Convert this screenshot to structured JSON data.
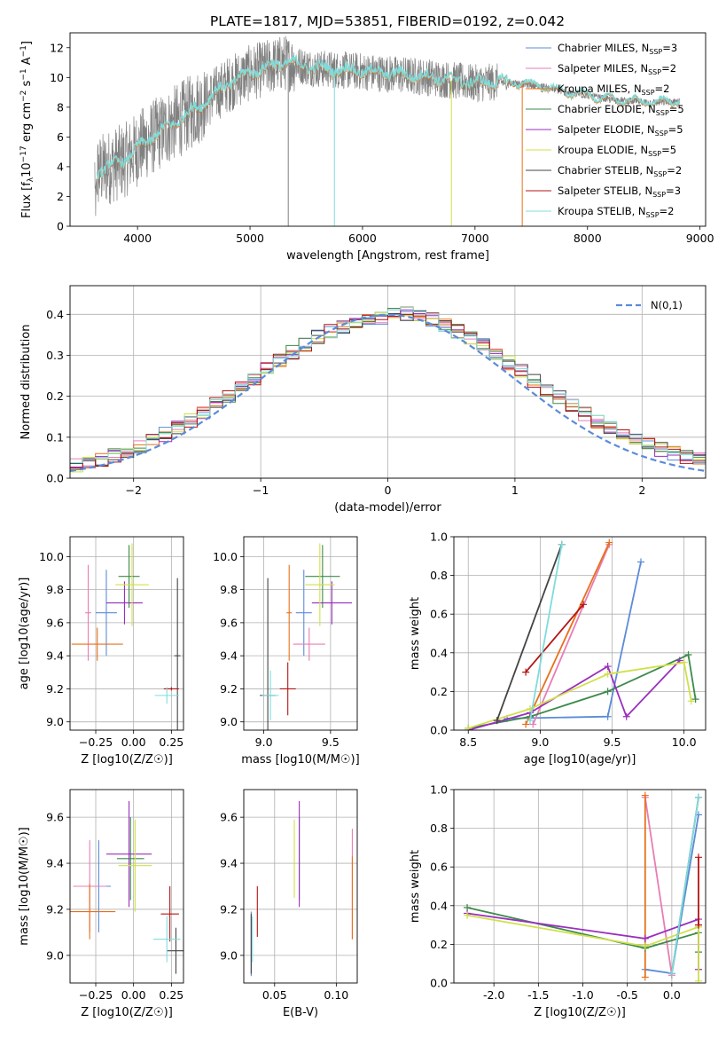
{
  "title": "PLATE=1817, MJD=53851, FIBERID=0192, z=0.042",
  "colors": [
    "#5b8bd9",
    "#e87db5",
    "#e8701a",
    "#3d8a4a",
    "#9a2fbe",
    "#d0e04a",
    "#444444",
    "#b51313",
    "#7fdcdc"
  ],
  "models": [
    "Chabrier MILES, N_SSP=3",
    "Salpeter MILES, N_SSP=2",
    "Kroupa MILES, N_SSP=2",
    "Chabrier ELODIE, N_SSP=5",
    "Salpeter ELODIE, N_SSP=5",
    "Kroupa ELODIE, N_SSP=5",
    "Chabrier STELIB, N_SSP=2",
    "Salpeter STELIB, N_SSP=3",
    "Kroupa STELIB, N_SSP=2"
  ],
  "panels": {
    "spectrum": {
      "xlabel": "wavelength [Angstrom, rest frame]",
      "ylabel": "Flux [f_λ 10^-17 erg cm^-2 s^-1 A^-1]"
    },
    "residuals": {
      "xlabel": "(data-model)/error",
      "ylabel": "Normed distribution",
      "legend": "N(0,1)"
    },
    "z_age": {
      "xlabel": "Z [log10(Z/Z☉)]",
      "ylabel": "age [log10(age/yr)]"
    },
    "mass_age": {
      "xlabel": "mass [log10(M/M☉)]"
    },
    "age_weight": {
      "xlabel": "age [log10(age/yr)]",
      "ylabel": "mass weight"
    },
    "z_mass": {
      "xlabel": "Z [log10(Z/Z☉)]",
      "ylabel": "mass [log10(M/M☉)]"
    },
    "ebv_mass": {
      "xlabel": "E(B-V)"
    },
    "z_weight": {
      "xlabel": "Z [log10(Z/Z☉)]",
      "ylabel": "mass weight"
    }
  },
  "chart_data": [
    {
      "type": "line",
      "name": "spectrum",
      "xlim": [
        3400,
        9050
      ],
      "ylim": [
        0,
        13
      ],
      "xticks": [
        4000,
        5000,
        6000,
        7000,
        8000,
        9000
      ],
      "yticks": [
        0,
        2,
        4,
        6,
        8,
        10,
        12
      ],
      "data_envelope": {
        "x": [
          3620,
          3700,
          3900,
          4000,
          4100,
          4300,
          4500,
          4800,
          5000,
          5300,
          5600,
          6000,
          6300,
          6600,
          6800,
          7000,
          7200,
          7400,
          7600,
          7800,
          8000,
          8200,
          8400,
          8600,
          8800
        ],
        "y": [
          3.5,
          3.8,
          4.5,
          5.2,
          5.8,
          6.8,
          7.8,
          9.5,
          10.3,
          11.0,
          10.6,
          10.4,
          10.2,
          10.0,
          9.8,
          9.6,
          9.7,
          9.6,
          9.4,
          9.0,
          8.8,
          8.5,
          8.4,
          8.3,
          8.4
        ]
      }
    },
    {
      "type": "line",
      "name": "residual histograms",
      "xlim": [
        -2.5,
        2.5
      ],
      "ylim": [
        0,
        0.47
      ],
      "xticks": [
        -2,
        -1,
        0,
        1,
        2
      ],
      "yticks": [
        0.0,
        0.1,
        0.2,
        0.3,
        0.4
      ],
      "normal_mean": 0,
      "normal_sigma": 1
    },
    {
      "type": "scatter",
      "name": "Z vs age",
      "xlim": [
        -0.42,
        0.33
      ],
      "ylim": [
        8.95,
        10.12
      ],
      "xticks": [
        -0.25,
        0.0,
        0.25
      ],
      "yticks": [
        9.0,
        9.2,
        9.4,
        9.6,
        9.8,
        10.0
      ],
      "points": [
        {
          "x": -0.18,
          "y": 9.66,
          "xerr": 0.07,
          "yerr": 0.26
        },
        {
          "x": -0.3,
          "y": 9.66,
          "xerr": 0.02,
          "yerr": 0.29
        },
        {
          "x": -0.24,
          "y": 9.47,
          "xerr": 0.17,
          "yerr": 0.1
        },
        {
          "x": -0.03,
          "y": 9.88,
          "xerr": 0.07,
          "yerr": 0.19
        },
        {
          "x": -0.06,
          "y": 9.72,
          "xerr": 0.12,
          "yerr": 0.13
        },
        {
          "x": -0.01,
          "y": 9.83,
          "xerr": 0.11,
          "yerr": 0.25
        },
        {
          "x": 0.29,
          "y": 9.4,
          "xerr": 0.02,
          "yerr": 0.47
        },
        {
          "x": 0.25,
          "y": 9.2,
          "xerr": 0.05,
          "yerr": 0.01
        },
        {
          "x": 0.22,
          "y": 9.16,
          "xerr": 0.08,
          "yerr": 0.05
        }
      ]
    },
    {
      "type": "scatter",
      "name": "mass vs age",
      "xlim": [
        8.85,
        9.7
      ],
      "ylim": [
        8.95,
        10.12
      ],
      "xticks": [
        9.0,
        9.5
      ],
      "yticks": [
        9.0,
        9.2,
        9.4,
        9.6,
        9.8,
        10.0
      ],
      "points": [
        {
          "x": 9.3,
          "y": 9.66,
          "xerr": 0.06,
          "yerr": 0.26
        },
        {
          "x": 9.34,
          "y": 9.47,
          "xerr": 0.12,
          "yerr": 0.1
        },
        {
          "x": 9.19,
          "y": 9.66,
          "xerr": 0.02,
          "yerr": 0.29
        },
        {
          "x": 9.44,
          "y": 9.88,
          "xerr": 0.13,
          "yerr": 0.19
        },
        {
          "x": 9.51,
          "y": 9.72,
          "xerr": 0.15,
          "yerr": 0.13
        },
        {
          "x": 9.42,
          "y": 9.83,
          "xerr": 0.11,
          "yerr": 0.25
        },
        {
          "x": 9.03,
          "y": 9.16,
          "xerr": 0.06,
          "yerr": 0.71
        },
        {
          "x": 9.18,
          "y": 9.2,
          "xerr": 0.06,
          "yerr": 0.16
        },
        {
          "x": 9.05,
          "y": 9.16,
          "xerr": 0.06,
          "yerr": 0.15
        }
      ]
    },
    {
      "type": "line",
      "name": "age vs mass weight",
      "xlim": [
        8.4,
        10.15
      ],
      "ylim": [
        0,
        1
      ],
      "xticks": [
        8.5,
        9.0,
        9.5,
        10.0
      ],
      "yticks": [
        0.0,
        0.2,
        0.4,
        0.6,
        0.8,
        1.0
      ],
      "series": [
        {
          "x": [
            8.77,
            9.47,
            9.7
          ],
          "y": [
            0.06,
            0.07,
            0.87
          ]
        },
        {
          "x": [
            8.95,
            9.48
          ],
          "y": [
            0.03,
            0.96
          ]
        },
        {
          "x": [
            8.9,
            9.48
          ],
          "y": [
            0.03,
            0.97
          ]
        },
        {
          "x": [
            8.5,
            8.93,
            9.47,
            10.03,
            10.08
          ],
          "y": [
            0.01,
            0.07,
            0.2,
            0.39,
            0.16
          ]
        },
        {
          "x": [
            8.5,
            8.93,
            9.47,
            9.6,
            9.97
          ],
          "y": [
            0.0,
            0.09,
            0.33,
            0.07,
            0.36
          ]
        },
        {
          "x": [
            8.5,
            8.93,
            9.47,
            10.0,
            10.05
          ],
          "y": [
            0.01,
            0.11,
            0.29,
            0.35,
            0.15
          ]
        },
        {
          "x": [
            8.7,
            9.15
          ],
          "y": [
            0.05,
            0.96
          ]
        },
        {
          "x": [
            8.9,
            9.3
          ],
          "y": [
            0.3,
            0.65
          ]
        },
        {
          "x": [
            8.93,
            9.15
          ],
          "y": [
            0.05,
            0.96
          ]
        }
      ]
    },
    {
      "type": "scatter",
      "name": "Z vs mass",
      "xlim": [
        -0.42,
        0.33
      ],
      "ylim": [
        8.88,
        9.72
      ],
      "xticks": [
        -0.25,
        0.0,
        0.25
      ],
      "yticks": [
        9.0,
        9.2,
        9.4,
        9.6
      ],
      "points": [
        {
          "x": -0.23,
          "y": 9.3,
          "xerr": 0.08,
          "yerr": 0.2
        },
        {
          "x": -0.29,
          "y": 9.3,
          "xerr": 0.11,
          "yerr": 0.2
        },
        {
          "x": -0.29,
          "y": 9.19,
          "xerr": 0.17,
          "yerr": 0.12
        },
        {
          "x": -0.02,
          "y": 9.42,
          "xerr": 0.09,
          "yerr": 0.18
        },
        {
          "x": -0.03,
          "y": 9.44,
          "xerr": 0.15,
          "yerr": 0.23
        },
        {
          "x": 0.01,
          "y": 9.39,
          "xerr": 0.11,
          "yerr": 0.2
        },
        {
          "x": 0.28,
          "y": 9.02,
          "xerr": 0.06,
          "yerr": 0.1
        },
        {
          "x": 0.24,
          "y": 9.18,
          "xerr": 0.06,
          "yerr": 0.12
        },
        {
          "x": 0.22,
          "y": 9.07,
          "xerr": 0.09,
          "yerr": 0.1
        }
      ]
    },
    {
      "type": "scatter",
      "name": "E(B-V) vs mass",
      "xlim": [
        0.025,
        0.117
      ],
      "ylim": [
        8.88,
        9.72
      ],
      "xticks": [
        0.05,
        0.1
      ],
      "yticks": [
        9.0,
        9.2,
        9.4,
        9.6
      ],
      "points": [
        {
          "x": 0.031,
          "y": 9.05,
          "yerr": 0.14
        },
        {
          "x": 0.113,
          "y": 9.31,
          "yerr": 0.24
        },
        {
          "x": 0.113,
          "y": 9.25,
          "yerr": 0.18
        },
        {
          "x": 0.07,
          "y": 9.42,
          "yerr": 0.18
        },
        {
          "x": 0.07,
          "y": 9.44,
          "yerr": 0.23
        },
        {
          "x": 0.066,
          "y": 9.42,
          "yerr": 0.17
        },
        {
          "x": 0.031,
          "y": 9.05,
          "yerr": 0.13
        },
        {
          "x": 0.036,
          "y": 9.19,
          "yerr": 0.11
        },
        {
          "x": 0.032,
          "y": 9.07,
          "yerr": 0.1
        }
      ]
    },
    {
      "type": "line",
      "name": "Z vs mass weight",
      "xlim": [
        -2.45,
        0.38
      ],
      "ylim": [
        0,
        1
      ],
      "xticks": [
        -2.0,
        -1.5,
        -1.0,
        -0.5,
        0.0
      ],
      "yticks": [
        0.0,
        0.2,
        0.4,
        0.6,
        0.8,
        1.0
      ],
      "series": [
        {
          "x": [
            -0.3,
            0.0,
            0.3
          ],
          "y": [
            0.07,
            0.05,
            0.87
          ]
        },
        {
          "x": [
            -0.3,
            0.0
          ],
          "y": [
            0.96,
            0.04
          ]
        },
        {
          "x": [
            -0.3,
            -0.3
          ],
          "y": [
            0.03,
            0.97
          ]
        },
        {
          "x": [
            -2.3,
            -0.3,
            0.3,
            0.3
          ],
          "y": [
            0.39,
            0.18,
            0.26,
            0.16
          ]
        },
        {
          "x": [
            -2.3,
            -0.3,
            0.3,
            0.3
          ],
          "y": [
            0.36,
            0.23,
            0.33,
            0.07
          ]
        },
        {
          "x": [
            -2.3,
            -0.3,
            0.3,
            0.3
          ],
          "y": [
            0.35,
            0.19,
            0.29,
            0.01
          ]
        },
        {
          "x": [
            0.0,
            0.3
          ],
          "y": [
            0.05,
            0.96
          ]
        },
        {
          "x": [
            0.3,
            0.3
          ],
          "y": [
            0.3,
            0.65
          ]
        },
        {
          "x": [
            0.0,
            0.3
          ],
          "y": [
            0.05,
            0.96
          ]
        }
      ]
    }
  ]
}
